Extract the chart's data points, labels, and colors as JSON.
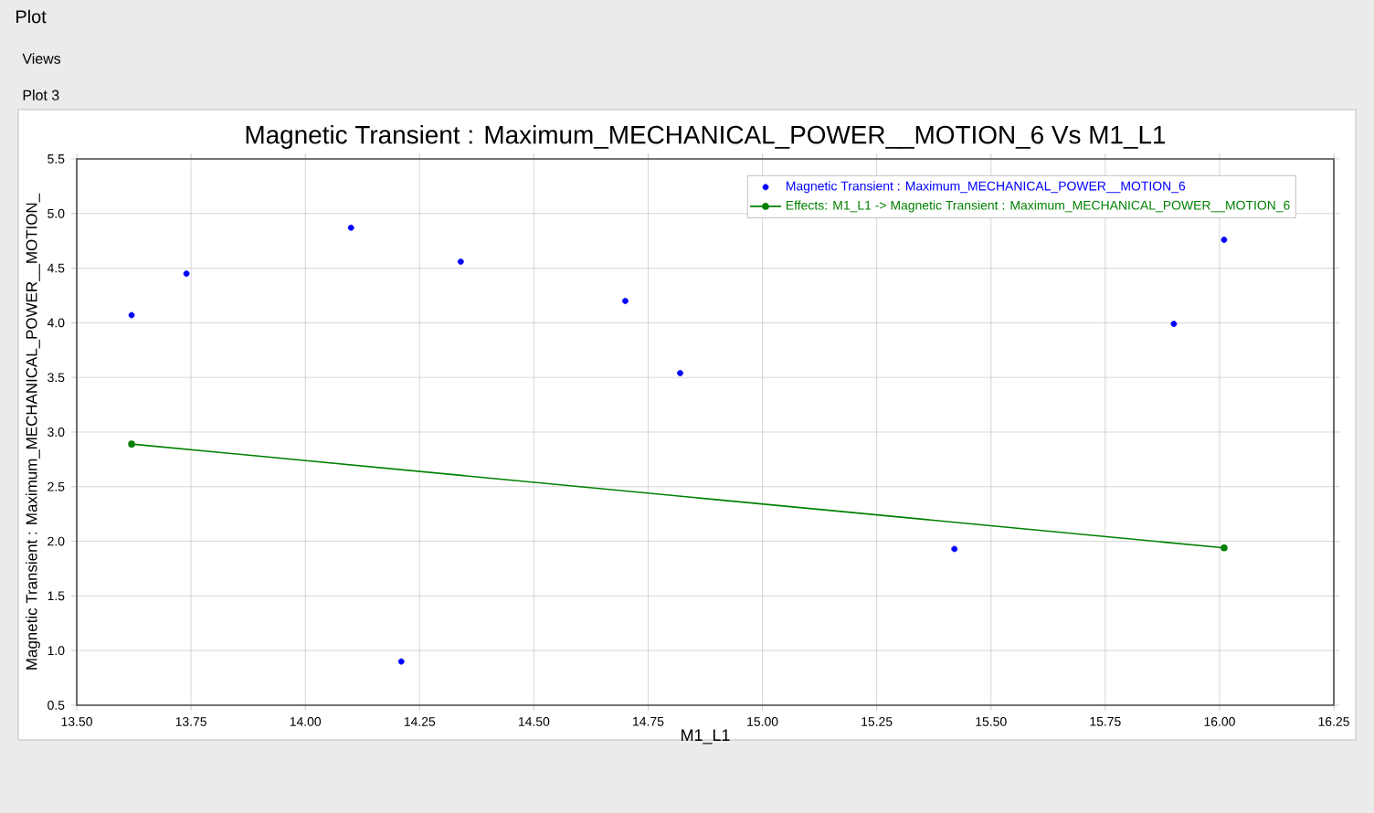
{
  "chart_data": {
    "type": "scatter",
    "title": "Magnetic Transient : Maximum_MECHANICAL_POWER__MOTION_6 Vs M1_L1",
    "xlabel": "M1_L1",
    "ylabel": "Magnetic Transient : Maximum_MECHANICAL_POWER__MOTION_",
    "annotations": [
      "Plot",
      "Views",
      "Plot 3"
    ],
    "xlim": [
      13.5,
      16.25
    ],
    "ylim": [
      0.5,
      5.5
    ],
    "xticks": [
      {
        "value": 13.5,
        "label": "13.50"
      },
      {
        "value": 13.75,
        "label": "13.75"
      },
      {
        "value": 14,
        "label": "14.00"
      },
      {
        "value": 14.25,
        "label": "14.25"
      },
      {
        "value": 14.5,
        "label": "14.50"
      },
      {
        "value": 14.75,
        "label": "14.75"
      },
      {
        "value": 15,
        "label": "15.00"
      },
      {
        "value": 15.25,
        "label": "15.25"
      },
      {
        "value": 15.5,
        "label": "15.50"
      },
      {
        "value": 15.75,
        "label": "15.75"
      },
      {
        "value": 16,
        "label": "16.00"
      },
      {
        "value": 16.25,
        "label": "16.25"
      }
    ],
    "yticks": [
      0.5,
      {
        "value": 1,
        "label": "1.0"
      },
      1.5,
      {
        "value": 2,
        "label": "2.0"
      },
      2.5,
      {
        "value": 3,
        "label": "3.0"
      },
      3.5,
      {
        "value": 4,
        "label": "4.0"
      },
      4.5,
      {
        "value": 5,
        "label": "5.0"
      },
      5.5
    ],
    "grid": true,
    "legend": "top right",
    "marker": "circle",
    "series": [
      {
        "name": "Magnetic Transient : Maximum_MECHANICAL_POWER__MOTION_6",
        "color": "#0000ff",
        "x": [
          13.62,
          13.74,
          14.1,
          14.21,
          14.34,
          14.7,
          14.82,
          15.42,
          15.9,
          16.01
        ],
        "values": [
          4.07,
          4.45,
          4.87,
          0.9,
          4.56,
          4.2,
          3.54,
          1.93,
          3.99,
          4.76
        ]
      },
      {
        "type": "line",
        "name": "Effects: M1_L1 -> Magnetic Transient : Maximum_MECHANICAL_POWER__MOTION_6",
        "color": "#008000",
        "x": [
          13.62,
          16.01
        ],
        "values": [
          2.89,
          1.94
        ]
      }
    ]
  }
}
